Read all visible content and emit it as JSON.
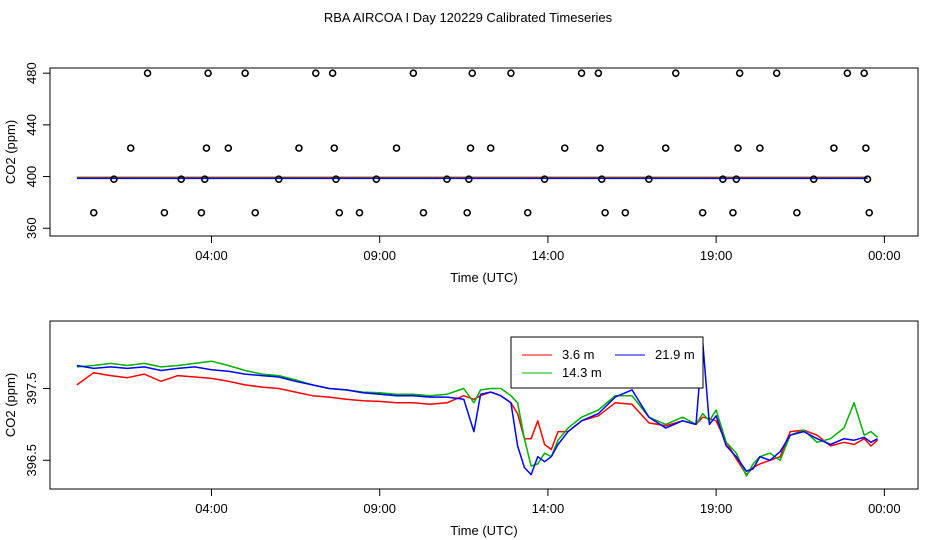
{
  "page_title": "RBA AIRCOA I  Day 120229  Calibrated Timeseries",
  "chart_data": [
    {
      "type": "scatter",
      "xlabel": "Time (UTC)",
      "ylabel": "CO2 (ppm)",
      "x_ticks": [
        {
          "hours": 4,
          "label": "04:00"
        },
        {
          "hours": 9,
          "label": "09:00"
        },
        {
          "hours": 14,
          "label": "14:00"
        },
        {
          "hours": 19,
          "label": "19:00"
        },
        {
          "hours": 24,
          "label": "00:00"
        }
      ],
      "y_ticks": [
        {
          "value": 360,
          "label": "360"
        },
        {
          "value": 400,
          "label": "400"
        },
        {
          "value": 440,
          "label": "440"
        },
        {
          "value": 480,
          "label": "480"
        }
      ],
      "xlim": [
        -0.8,
        25.0
      ],
      "ylim": [
        354,
        484
      ],
      "grid": false,
      "points_x_unit": "hours UTC",
      "points": [
        [
          0.5,
          372
        ],
        [
          1.1,
          398
        ],
        [
          1.6,
          422
        ],
        [
          2.1,
          480
        ],
        [
          2.6,
          372
        ],
        [
          3.1,
          398
        ],
        [
          3.7,
          372
        ],
        [
          3.8,
          398
        ],
        [
          3.85,
          422
        ],
        [
          3.9,
          480
        ],
        [
          4.5,
          422
        ],
        [
          5.0,
          480
        ],
        [
          5.3,
          372
        ],
        [
          6.0,
          398
        ],
        [
          6.6,
          422
        ],
        [
          7.1,
          480
        ],
        [
          7.6,
          480
        ],
        [
          7.65,
          422
        ],
        [
          7.7,
          398
        ],
        [
          7.8,
          372
        ],
        [
          8.4,
          372
        ],
        [
          8.9,
          398
        ],
        [
          9.5,
          422
        ],
        [
          10.0,
          480
        ],
        [
          10.3,
          372
        ],
        [
          11.0,
          398
        ],
        [
          11.6,
          372
        ],
        [
          11.65,
          398
        ],
        [
          11.7,
          422
        ],
        [
          11.75,
          480
        ],
        [
          12.3,
          422
        ],
        [
          12.9,
          480
        ],
        [
          13.4,
          372
        ],
        [
          13.9,
          398
        ],
        [
          14.5,
          422
        ],
        [
          15.0,
          480
        ],
        [
          15.5,
          480
        ],
        [
          15.55,
          422
        ],
        [
          15.6,
          398
        ],
        [
          15.7,
          372
        ],
        [
          16.3,
          372
        ],
        [
          17.0,
          398
        ],
        [
          17.5,
          422
        ],
        [
          17.8,
          480
        ],
        [
          18.6,
          372
        ],
        [
          19.2,
          398
        ],
        [
          19.5,
          372
        ],
        [
          19.6,
          398
        ],
        [
          19.65,
          422
        ],
        [
          19.7,
          480
        ],
        [
          20.3,
          422
        ],
        [
          20.8,
          480
        ],
        [
          21.4,
          372
        ],
        [
          21.9,
          398
        ],
        [
          22.5,
          422
        ],
        [
          22.9,
          480
        ],
        [
          23.4,
          480
        ],
        [
          23.45,
          422
        ],
        [
          23.5,
          398
        ],
        [
          23.55,
          372
        ]
      ],
      "series": [
        {
          "name": "3.6 m",
          "color": "#ff0000",
          "level": 399
        },
        {
          "name": "14.3 m",
          "color": "#00b000",
          "level": 399
        },
        {
          "name": "21.9 m",
          "color": "#0000ff",
          "level": 399
        }
      ]
    },
    {
      "type": "line",
      "xlabel": "Time (UTC)",
      "ylabel": "CO2 (ppm)",
      "x_ticks": [
        {
          "hours": 4,
          "label": "04:00"
        },
        {
          "hours": 9,
          "label": "09:00"
        },
        {
          "hours": 14,
          "label": "14:00"
        },
        {
          "hours": 19,
          "label": "19:00"
        },
        {
          "hours": 24,
          "label": "00:00"
        }
      ],
      "y_ticks": [
        {
          "value": 396.5,
          "label": "396.5"
        },
        {
          "value": 397.5,
          "label": "397.5"
        }
      ],
      "xlim": [
        -0.8,
        25.0
      ],
      "ylim": [
        396.1,
        398.44
      ],
      "grid": false,
      "legend_position": "top-center",
      "x": [
        0,
        0.5,
        1,
        1.5,
        2,
        2.5,
        3,
        3.5,
        4,
        4.5,
        5,
        5.5,
        6,
        6.5,
        7,
        7.5,
        8,
        8.5,
        9,
        9.5,
        10,
        10.5,
        11,
        11.5,
        11.8,
        12,
        12.3,
        12.6,
        12.9,
        13.1,
        13.3,
        13.5,
        13.7,
        13.9,
        14.1,
        14.3,
        14.6,
        15,
        15.5,
        16,
        16.5,
        17,
        17.5,
        18,
        18.4,
        18.6,
        18.8,
        19,
        19.3,
        19.6,
        19.9,
        20.1,
        20.3,
        20.6,
        20.9,
        21.2,
        21.6,
        22,
        22.4,
        22.8,
        23.1,
        23.4,
        23.6,
        23.8
      ],
      "series": [
        {
          "name": "3.6 m",
          "color": "#ff0000",
          "values": [
            397.55,
            397.72,
            397.68,
            397.65,
            397.7,
            397.6,
            397.68,
            397.66,
            397.64,
            397.6,
            397.55,
            397.52,
            397.5,
            397.45,
            397.4,
            397.38,
            397.35,
            397.33,
            397.32,
            397.3,
            397.3,
            397.28,
            397.3,
            397.4,
            397.35,
            397.4,
            397.45,
            397.4,
            397.3,
            397.15,
            396.8,
            396.8,
            397.05,
            396.72,
            396.65,
            396.9,
            396.9,
            397.05,
            397.12,
            397.3,
            397.28,
            397.02,
            396.98,
            397.05,
            397.0,
            397.1,
            397.08,
            397.05,
            396.75,
            396.52,
            396.3,
            396.4,
            396.45,
            396.5,
            396.55,
            396.9,
            396.92,
            396.85,
            396.7,
            396.75,
            396.72,
            396.8,
            396.7,
            396.78
          ]
        },
        {
          "name": "14.3 m",
          "color": "#00b000",
          "values": [
            397.8,
            397.82,
            397.85,
            397.82,
            397.85,
            397.8,
            397.82,
            397.85,
            397.88,
            397.82,
            397.75,
            397.7,
            397.68,
            397.62,
            397.55,
            397.5,
            397.48,
            397.45,
            397.44,
            397.42,
            397.42,
            397.4,
            397.42,
            397.5,
            397.3,
            397.48,
            397.5,
            397.5,
            397.4,
            397.3,
            396.8,
            396.42,
            396.45,
            396.6,
            396.55,
            396.78,
            396.95,
            397.1,
            397.2,
            397.4,
            397.4,
            397.1,
            397.0,
            397.1,
            397.0,
            397.15,
            397.05,
            397.2,
            396.75,
            396.6,
            396.28,
            396.45,
            396.55,
            396.6,
            396.5,
            396.85,
            396.92,
            396.75,
            396.8,
            396.95,
            397.3,
            396.85,
            396.9,
            396.82
          ]
        },
        {
          "name": "21.9 m",
          "color": "#0000ff",
          "values": [
            397.82,
            397.78,
            397.8,
            397.78,
            397.8,
            397.75,
            397.78,
            397.8,
            397.76,
            397.74,
            397.7,
            397.68,
            397.66,
            397.6,
            397.55,
            397.5,
            397.48,
            397.44,
            397.42,
            397.4,
            397.4,
            397.38,
            397.38,
            397.35,
            396.9,
            397.42,
            397.45,
            397.4,
            397.3,
            396.7,
            396.4,
            396.3,
            396.55,
            396.48,
            396.55,
            396.72,
            396.9,
            397.05,
            397.15,
            397.38,
            397.48,
            397.1,
            396.95,
            397.05,
            397.0,
            398.15,
            397.0,
            397.12,
            396.7,
            396.55,
            396.35,
            396.38,
            396.55,
            396.5,
            396.62,
            396.85,
            396.9,
            396.8,
            396.72,
            396.8,
            396.78,
            396.82,
            396.75,
            396.8
          ]
        }
      ]
    }
  ]
}
